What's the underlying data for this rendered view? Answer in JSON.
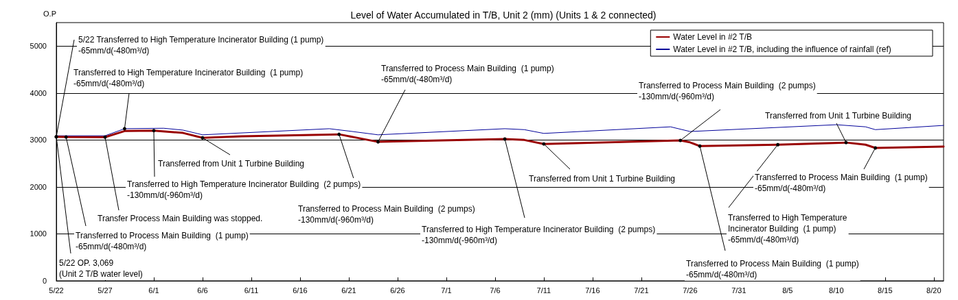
{
  "chart_data": {
    "type": "line",
    "title": "Level of Water Accumulated in T/B, Unit 2 (mm) (Units 1 & 2 connected)",
    "ylabel": "O.P",
    "xlim": [
      "--05-22",
      "--08-21"
    ],
    "xticks": [
      {
        "value": "--05-22",
        "label": "5/22"
      },
      {
        "value": "--05-27",
        "label": "5/27"
      },
      {
        "value": "--06-01",
        "label": "6/1"
      },
      {
        "value": "--06-06",
        "label": "6/6"
      },
      {
        "value": "--06-11",
        "label": "6/11"
      },
      {
        "value": "--06-16",
        "label": "6/16"
      },
      {
        "value": "--06-21",
        "label": "6/21"
      },
      {
        "value": "--06-26",
        "label": "6/26"
      },
      {
        "value": "--07-01",
        "label": "7/1"
      },
      {
        "value": "--07-06",
        "label": "7/6"
      },
      {
        "value": "--07-11",
        "label": "7/11"
      },
      {
        "value": "--07-16",
        "label": "7/16"
      },
      {
        "value": "--07-21",
        "label": "7/21"
      },
      {
        "value": "--07-26",
        "label": "7/26"
      },
      {
        "value": "--07-31",
        "label": "7/31"
      },
      {
        "value": "--08-05",
        "label": "8/5"
      },
      {
        "value": "--08-10",
        "label": "8/10"
      },
      {
        "value": "--08-15",
        "label": "8/15"
      },
      {
        "value": "--08-20",
        "label": "8/20"
      }
    ],
    "ylim": [
      0,
      5500
    ],
    "yticks": [
      0,
      1000,
      2000,
      3000,
      4000,
      5000
    ],
    "grid": "y",
    "legend": "top right",
    "marker": "none",
    "line_style": "solid",
    "series": [
      {
        "name": "Water Level in #2 T/B",
        "color": "#990000",
        "x": [
          "--05-22",
          "--05-23",
          "--05-27",
          "--05-29",
          "--06-01",
          "--06-04",
          "--06-06",
          "--06-10",
          "--06-20",
          "--06-22",
          "--06-24",
          "--07-07",
          "--07-09",
          "--07-11",
          "--07-25",
          "--07-26",
          "--07-27",
          "--08-04",
          "--08-11",
          "--08-13",
          "--08-14",
          "--08-21"
        ],
        "values": [
          3069,
          3062,
          3060,
          3190,
          3200,
          3150,
          3045,
          3080,
          3120,
          3040,
          2960,
          3020,
          3000,
          2915,
          2990,
          2950,
          2870,
          2900,
          2945,
          2900,
          2830,
          2860
        ]
      },
      {
        "name": "Water Level in #2 T/B, including the influence of rainfall (ref)",
        "color": "#000099",
        "x": [
          "--05-22",
          "--05-27",
          "--05-29",
          "--06-02",
          "--06-04",
          "--06-06",
          "--06-19",
          "--06-21",
          "--06-24",
          "--07-07",
          "--07-09",
          "--07-11",
          "--07-24",
          "--07-26",
          "--08-10",
          "--08-13",
          "--08-14",
          "--08-21"
        ],
        "values": [
          3090,
          3090,
          3240,
          3250,
          3210,
          3110,
          3240,
          3190,
          3110,
          3240,
          3220,
          3140,
          3280,
          3180,
          3325,
          3280,
          3220,
          3310
        ]
      }
    ],
    "annotations": [
      {
        "text": "5/22 Transferred to High Temperature Incinerator Building (1 pump)\n-65mm/d(-480m³/d)",
        "x": "--05-22",
        "y": 3069
      },
      {
        "text": "Transferred to High Temperature Incinerator Building  (1 pump)\n-65mm/d(-480m³/d)",
        "x": "--05-29",
        "y": 3240
      },
      {
        "text": "Transferred to Process Main Building  (1 pump)\n-65mm/d(-480m³/d)",
        "x": "--06-24",
        "y": 2960
      },
      {
        "text": "Transferred to Process Main Building  (2 pumps)\n-130mm/d(-960m³/d)",
        "x": "--07-25",
        "y": 2990
      },
      {
        "text": "Transferred from Unit 1 Turbine Building",
        "x": "--08-11",
        "y": 2945
      },
      {
        "text": "Transferred from Unit 1 Turbine Building",
        "x": "--06-06",
        "y": 3045
      },
      {
        "text": "Transferred to High Temperature Incinerator Building  (2 pumps)\n-130mm/d(-960m³/d)",
        "x": "--06-01",
        "y": 3200
      },
      {
        "text": "Transfer Process Main Building was stopped.",
        "x": "--05-27",
        "y": 3060
      },
      {
        "text": "Transferred to Process Main Building  (1 pump)\n-65mm/d(-480m³/d)",
        "x": "--05-23",
        "y": 3062
      },
      {
        "text": "5/22 OP. 3,069\n(Unit 2 T/B water level)",
        "x": "--05-22",
        "y": 3069
      },
      {
        "text": "Transferred to Process Main Building  (2 pumps)\n-130mm/d(-960m³/d)",
        "x": "--06-20",
        "y": 3120
      },
      {
        "text": "Transferred to High Temperature Incinerator Building  (2 pumps)\n-130mm/d(-960m³/d)",
        "x": "--07-07",
        "y": 3020
      },
      {
        "text": "Transferred from Unit 1 Turbine Building",
        "x": "--07-11",
        "y": 2915
      },
      {
        "text": "Transferred to Process Main Building  (1 pump)\n-65mm/d(-480m³/d)",
        "x": "--08-14",
        "y": 2830
      },
      {
        "text": "Transferred to High Temperature\nIncinerator Building  (1 pump)\n-65mm/d(-480m³/d)",
        "x": "--08-04",
        "y": 2900
      },
      {
        "text": "Transferred to Process Main Building  (1 pump)\n-65mm/d(-480m³/d)",
        "x": "--07-27",
        "y": 2870
      }
    ]
  }
}
